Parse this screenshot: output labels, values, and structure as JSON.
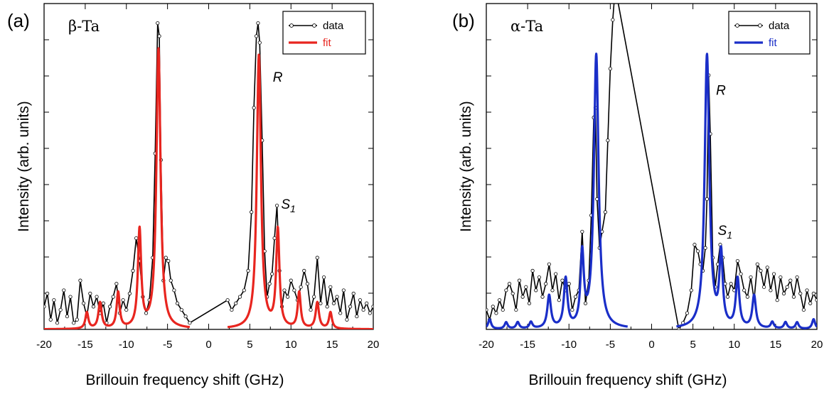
{
  "chart_data": [
    {
      "type": "line",
      "panel_label": "(a)",
      "sample": "β-Ta",
      "xlabel": "Brillouin frequency shift (GHz)",
      "ylabel": "Intensity (arb. units)",
      "xlim": [
        -20,
        20
      ],
      "ylim": [
        0,
        1.0
      ],
      "x_ticks": [
        -20,
        -15,
        -10,
        -5,
        0,
        5,
        10,
        15,
        20
      ],
      "legend_position": "top-right",
      "peak_labels": [
        {
          "text": "R",
          "x": 7.8,
          "y": 0.76
        },
        {
          "text": "S",
          "sub": "1",
          "x": 8.8,
          "y": 0.37
        }
      ],
      "series": [
        {
          "name": "data",
          "color": "#000000",
          "marker": "circle",
          "x": [
            -20,
            -19.6,
            -19.2,
            -18.8,
            -18.4,
            -18,
            -17.6,
            -17.2,
            -16.8,
            -16.4,
            -16,
            -15.6,
            -15.2,
            -14.8,
            -14.4,
            -14,
            -13.6,
            -13.2,
            -12.8,
            -12.4,
            -12,
            -11.6,
            -11.2,
            -10.8,
            -10.4,
            -10,
            -9.6,
            -9.2,
            -8.8,
            -8.4,
            -8.0,
            -7.6,
            -7.2,
            -6.8,
            -6.5,
            -6.2,
            -6.0,
            -5.8,
            -5.5,
            -5.2,
            -4.9,
            -4.6,
            -4.2,
            -3.8,
            -3.3,
            -2.8,
            -2.3,
            2.3,
            2.8,
            3.3,
            3.8,
            4.3,
            4.8,
            5.2,
            5.5,
            5.8,
            6.0,
            6.2,
            6.5,
            6.8,
            7.1,
            7.4,
            7.7,
            8.0,
            8.3,
            8.6,
            8.9,
            9.2,
            9.6,
            10,
            10.4,
            10.8,
            11.2,
            11.6,
            12,
            12.4,
            12.8,
            13.2,
            13.6,
            14,
            14.4,
            14.8,
            15.2,
            15.6,
            16,
            16.4,
            16.8,
            17.2,
            17.6,
            18,
            18.4,
            18.8,
            19.2,
            19.6,
            20
          ],
          "y": [
            0.07,
            0.11,
            0.03,
            0.09,
            0.02,
            0.06,
            0.12,
            0.04,
            0.1,
            0.02,
            0.03,
            0.15,
            0.08,
            0.04,
            0.11,
            0.07,
            0.1,
            0.05,
            0.08,
            0.02,
            0.07,
            0.1,
            0.14,
            0.05,
            0.09,
            0.06,
            0.11,
            0.18,
            0.28,
            0.21,
            0.1,
            0.05,
            0.09,
            0.22,
            0.54,
            0.94,
            0.9,
            0.52,
            0.15,
            0.22,
            0.21,
            0.15,
            0.12,
            0.08,
            0.06,
            0.04,
            0.02,
            0.09,
            0.06,
            0.08,
            0.1,
            0.12,
            0.18,
            0.36,
            0.68,
            0.9,
            0.94,
            0.88,
            0.58,
            0.24,
            0.1,
            0.14,
            0.17,
            0.28,
            0.38,
            0.18,
            0.07,
            0.12,
            0.1,
            0.15,
            0.12,
            0.09,
            0.13,
            0.18,
            0.14,
            0.06,
            0.1,
            0.22,
            0.08,
            0.16,
            0.07,
            0.13,
            0.08,
            0.1,
            0.05,
            0.12,
            0.03,
            0.07,
            0.11,
            0.04,
            0.09,
            0.06,
            0.08,
            0.05,
            0.07
          ]
        },
        {
          "name": "fit",
          "color": "#e8251f",
          "peaks": [
            {
              "x": -14.8,
              "h": 0.05,
              "w": 0.22
            },
            {
              "x": -13.2,
              "h": 0.08,
              "w": 0.24
            },
            {
              "x": -11.0,
              "h": 0.11,
              "w": 0.22
            },
            {
              "x": -8.4,
              "h": 0.3,
              "w": 0.24
            },
            {
              "x": -6.1,
              "h": 0.86,
              "w": 0.3
            },
            {
              "x": 6.1,
              "h": 0.84,
              "w": 0.3
            },
            {
              "x": 8.4,
              "h": 0.3,
              "w": 0.24
            },
            {
              "x": 11.0,
              "h": 0.11,
              "w": 0.22
            },
            {
              "x": 13.2,
              "h": 0.08,
              "w": 0.24
            },
            {
              "x": 14.8,
              "h": 0.05,
              "w": 0.22
            }
          ],
          "segments": [
            [
              -20,
              -2.3
            ],
            [
              2.3,
              20
            ]
          ],
          "baseline": 0.0
        }
      ]
    },
    {
      "type": "line",
      "panel_label": "(b)",
      "sample": "α-Ta",
      "xlabel": "Brillouin frequency shift (GHz)",
      "ylabel": "Intensity (arb. units)",
      "xlim": [
        -20,
        20
      ],
      "ylim": [
        0,
        1.0
      ],
      "x_ticks": [
        -20,
        -15,
        -10,
        -5,
        0,
        5,
        10,
        15,
        20
      ],
      "legend_position": "top-right",
      "peak_labels": [
        {
          "text": "R",
          "x": 7.8,
          "y": 0.72
        },
        {
          "text": "S",
          "sub": "1",
          "x": 8.0,
          "y": 0.29
        }
      ],
      "series": [
        {
          "name": "data",
          "color": "#000000",
          "marker": "circle",
          "x": [
            -20,
            -19.6,
            -19.2,
            -18.8,
            -18.4,
            -18,
            -17.6,
            -17.2,
            -16.8,
            -16.4,
            -16,
            -15.6,
            -15.2,
            -14.8,
            -14.4,
            -14,
            -13.6,
            -13.2,
            -12.8,
            -12.4,
            -12,
            -11.6,
            -11.2,
            -10.8,
            -10.4,
            -10,
            -9.6,
            -9.2,
            -8.8,
            -8.4,
            -8.0,
            -7.6,
            -7.3,
            -7.0,
            -6.8,
            -6.6,
            -6.3,
            -6.0,
            -5.6,
            -5.3,
            -5.0,
            -4.7,
            -4.4,
            3.3,
            3.8,
            4.3,
            4.8,
            5.2,
            5.6,
            5.9,
            6.2,
            6.5,
            6.7,
            6.9,
            7.1,
            7.4,
            7.7,
            8.0,
            8.3,
            8.6,
            8.9,
            9.2,
            9.6,
            10,
            10.4,
            10.8,
            11.2,
            11.6,
            12,
            12.4,
            12.8,
            13.2,
            13.6,
            14,
            14.4,
            14.8,
            15.2,
            15.6,
            16,
            16.4,
            16.8,
            17.2,
            17.6,
            18,
            18.4,
            18.8,
            19.2,
            19.6,
            20
          ],
          "y": [
            0.06,
            0.03,
            0.07,
            0.05,
            0.09,
            0.06,
            0.12,
            0.14,
            0.11,
            0.06,
            0.15,
            0.1,
            0.13,
            0.08,
            0.18,
            0.12,
            0.16,
            0.1,
            0.14,
            0.2,
            0.12,
            0.17,
            0.09,
            0.15,
            0.12,
            0.14,
            0.06,
            0.1,
            0.12,
            0.3,
            0.08,
            0.15,
            0.35,
            0.65,
            0.68,
            0.4,
            0.25,
            0.3,
            0.36,
            0.58,
            0.8,
            0.95,
            1.05,
            0.0,
            0.02,
            0.05,
            0.12,
            0.26,
            0.24,
            0.2,
            0.18,
            0.25,
            0.4,
            0.78,
            0.6,
            0.22,
            0.13,
            0.2,
            0.26,
            0.22,
            0.14,
            0.1,
            0.14,
            0.12,
            0.21,
            0.17,
            0.12,
            0.1,
            0.16,
            0.09,
            0.2,
            0.18,
            0.13,
            0.19,
            0.12,
            0.17,
            0.09,
            0.16,
            0.11,
            0.13,
            0.15,
            0.1,
            0.16,
            0.11,
            0.06,
            0.12,
            0.08,
            0.11,
            0.09
          ]
        },
        {
          "name": "fit",
          "color": "#1a2ec8",
          "peaks": [
            {
              "x": -19.6,
              "h": 0.03,
              "w": 0.22
            },
            {
              "x": -17.6,
              "h": 0.02,
              "w": 0.22
            },
            {
              "x": -16.2,
              "h": 0.02,
              "w": 0.22
            },
            {
              "x": -14.6,
              "h": 0.02,
              "w": 0.22
            },
            {
              "x": -12.4,
              "h": 0.1,
              "w": 0.26
            },
            {
              "x": -10.4,
              "h": 0.15,
              "w": 0.26
            },
            {
              "x": -8.4,
              "h": 0.22,
              "w": 0.24
            },
            {
              "x": -6.7,
              "h": 0.84,
              "w": 0.34
            },
            {
              "x": 6.7,
              "h": 0.84,
              "w": 0.34
            },
            {
              "x": 8.4,
              "h": 0.22,
              "w": 0.24
            },
            {
              "x": 10.4,
              "h": 0.15,
              "w": 0.26
            },
            {
              "x": 12.4,
              "h": 0.1,
              "w": 0.26
            },
            {
              "x": 14.6,
              "h": 0.02,
              "w": 0.22
            },
            {
              "x": 16.2,
              "h": 0.02,
              "w": 0.22
            },
            {
              "x": 17.6,
              "h": 0.02,
              "w": 0.22
            },
            {
              "x": 19.6,
              "h": 0.03,
              "w": 0.22
            }
          ],
          "segments": [
            [
              -20,
              -2.9
            ],
            [
              3.0,
              20
            ]
          ],
          "baseline": 0.0
        }
      ]
    }
  ]
}
